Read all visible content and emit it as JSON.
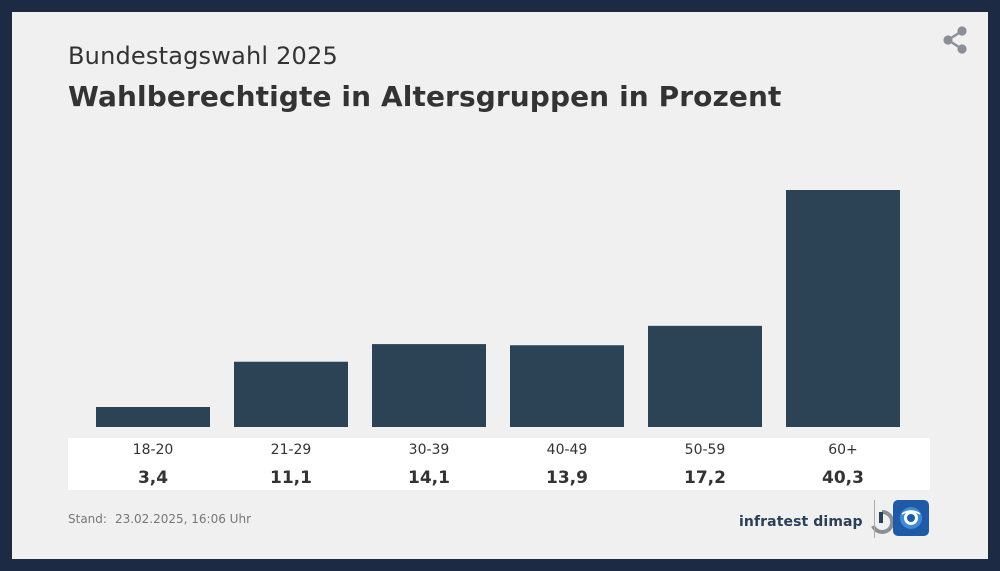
{
  "header": {
    "subtitle": "Bundestagswahl 2025",
    "title": "Wahlberechtigte in Altersgruppen in Prozent"
  },
  "chart_data": {
    "type": "bar",
    "title": "Wahlberechtigte in Altersgruppen in Prozent",
    "subtitle": "Bundestagswahl 2025",
    "categories": [
      "18-20",
      "21-29",
      "30-39",
      "40-49",
      "50-59",
      "60+"
    ],
    "values": [
      3.4,
      11.1,
      14.1,
      13.9,
      17.2,
      40.3
    ],
    "value_labels": [
      "3,4",
      "11,1",
      "14,1",
      "13,9",
      "17,2",
      "40,3"
    ],
    "xlabel": "",
    "ylabel": "",
    "ylim": [
      0,
      40.3
    ],
    "grid": false,
    "bar_color": "#2c4255"
  },
  "footer": {
    "stand_label": "Stand:",
    "stand_value": "23.02.2025, 16:06 Uhr",
    "source_logo_text": "infratest dimap"
  },
  "colors": {
    "background": "#f0f0f0",
    "frame": "#1c2a44",
    "text": "#333333",
    "ard_blue": "#1f5aa6"
  }
}
